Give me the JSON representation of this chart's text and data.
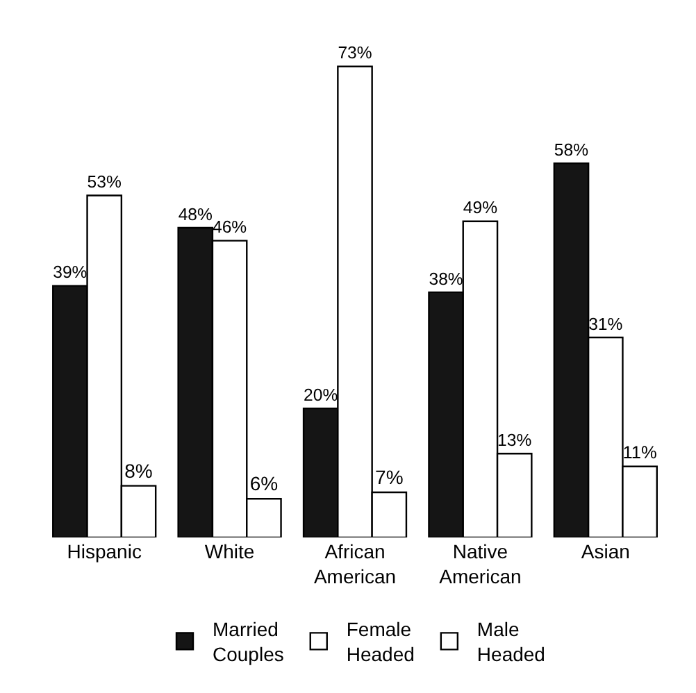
{
  "chart_data": {
    "type": "bar",
    "categories": [
      "Hispanic",
      "White",
      "African\nAmerican",
      "Native\nAmerican",
      "Asian"
    ],
    "series": [
      {
        "name": "Married\nCouples",
        "color": "#151515",
        "values": [
          39,
          48,
          20,
          38,
          58
        ],
        "value_labels": [
          "39%",
          "48%",
          "20%",
          "38%",
          "58%"
        ]
      },
      {
        "name": "Female\nHeaded",
        "color": "#ffffff",
        "values": [
          53,
          46,
          73,
          49,
          31
        ],
        "value_labels": [
          "53%",
          "46%",
          "73%",
          "49%",
          "31%"
        ]
      },
      {
        "name": "Male\nHeaded",
        "color": "#ffffff",
        "values": [
          8,
          6,
          7,
          13,
          11
        ],
        "value_labels": [
          "8%",
          "6%",
          "7%",
          "13%",
          "11%"
        ]
      }
    ],
    "legend": "bottom",
    "grid": false
  }
}
